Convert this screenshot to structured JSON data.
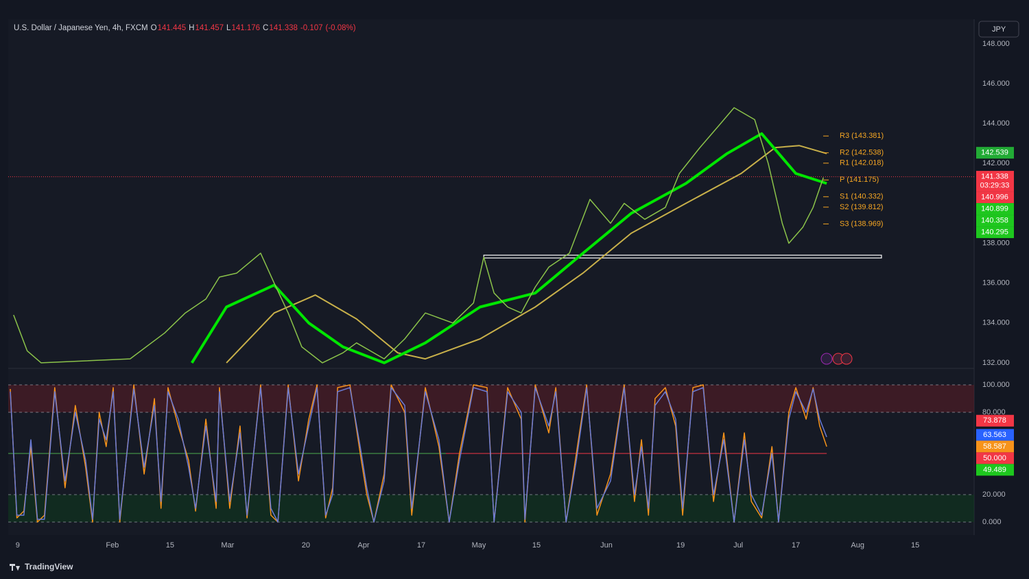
{
  "header": {
    "symbol": "U.S. Dollar / Japanese Yen, 4h, FXCM",
    "ohlc": [
      {
        "key": "O",
        "value": 141.445
      },
      {
        "key": "H",
        "value": 141.457
      },
      {
        "key": "L",
        "value": 141.176
      },
      {
        "key": "C",
        "value": 141.338
      }
    ],
    "change": -0.107,
    "change_pct": "(-0.08%)"
  },
  "currency_button": "JPY",
  "brand": "TradingView",
  "chart_data": [
    {
      "type": "line",
      "xlim": [
        6.7,
        241.3
      ],
      "ylim": [
        131.72,
        149.24
      ],
      "yticks": [
        {
          "value": 132,
          "label": "132.000"
        },
        {
          "value": 134,
          "label": "134.000"
        },
        {
          "value": 136,
          "label": "136.000"
        },
        {
          "value": 138,
          "label": "138.000"
        },
        {
          "value": 140,
          "label": "140.000"
        },
        {
          "value": 142,
          "label": "142.000"
        },
        {
          "value": 144,
          "label": "144.000"
        },
        {
          "value": 146,
          "label": "146.000"
        },
        {
          "value": 148,
          "label": "148.000"
        }
      ],
      "grid": false,
      "series": [
        {
          "color": "#c8b04a",
          "width": 2,
          "x": [
            59.7,
            71.3,
            81.3,
            91.3,
            101.3,
            108,
            121.3,
            134.7,
            146.3,
            158,
            171.3,
            184.7,
            193,
            198.8,
            205.5
          ],
          "values": [
            132.0,
            134.5,
            135.4,
            134.2,
            132.5,
            132.2,
            133.2,
            134.8,
            136.5,
            138.5,
            140.0,
            141.5,
            142.8,
            142.9,
            142.5
          ]
        },
        {
          "color": "#00e600",
          "width": 4,
          "x": [
            51.3,
            59.7,
            71.3,
            79.7,
            88,
            98,
            108,
            121.3,
            134.7,
            146.3,
            158,
            171.3,
            181.3,
            189.7,
            198,
            205.5
          ],
          "values": [
            132.0,
            134.8,
            135.9,
            134.0,
            132.8,
            132.0,
            133.0,
            134.8,
            135.5,
            137.5,
            139.5,
            141.0,
            142.5,
            143.5,
            141.5,
            141.0
          ]
        },
        {
          "color": "#8bc34a",
          "width": 1.5,
          "x": [
            8.0,
            11.3,
            14.7,
            36.3,
            44.7,
            49.7,
            54.7,
            58,
            62.2,
            68,
            71.3,
            74.7,
            78,
            83,
            88,
            91.3,
            98,
            103,
            108,
            114.7,
            119.7,
            122.2,
            124.7,
            128,
            131.3,
            134.7,
            138,
            143,
            148,
            153,
            156.3,
            161.3,
            166.3,
            169.7,
            174.7,
            179.7,
            183,
            188,
            191.3,
            194.7,
            196.3,
            199.7,
            202.2,
            204.7
          ],
          "values": [
            134.4,
            132.6,
            132.0,
            132.2,
            133.5,
            134.5,
            135.2,
            136.3,
            136.5,
            137.5,
            136.0,
            134.5,
            132.8,
            132.0,
            132.5,
            133.0,
            132.2,
            133.2,
            134.5,
            134.0,
            135.0,
            137.3,
            135.5,
            134.8,
            134.5,
            135.8,
            136.8,
            137.5,
            140.2,
            139.0,
            140.0,
            139.2,
            139.8,
            141.5,
            142.8,
            144.0,
            144.8,
            144.2,
            142.0,
            139.0,
            138.0,
            138.8,
            139.8,
            141.3
          ]
        }
      ],
      "last_price_line": {
        "value": 141.338,
        "color": "#f23645"
      },
      "zone": {
        "x": [
          122.2,
          218.8
        ],
        "y": [
          137.26,
          137.4
        ],
        "color": "#ffffff"
      },
      "pivots": [
        {
          "value": 143.381,
          "label": "R3 (143.381)"
        },
        {
          "value": 142.538,
          "label": "R2 (142.538)"
        },
        {
          "value": 142.018,
          "label": "R1 (142.018)"
        },
        {
          "value": 141.175,
          "label": "P (141.175)"
        },
        {
          "value": 140.332,
          "label": "S1 (140.332)"
        },
        {
          "value": 139.812,
          "label": "S2 (139.812)"
        },
        {
          "value": 138.969,
          "label": "S3 (138.969)"
        }
      ],
      "pivot_color": "#f5a623",
      "price_labels": [
        {
          "value": 142.539,
          "color": "#22ab35"
        },
        {
          "value": 141.338,
          "color": "#f23645",
          "countdown": "03:29:33"
        },
        {
          "value": 140.996,
          "color": "#f23645"
        },
        {
          "value": 140.899,
          "color": "#1ec71e"
        },
        {
          "value": 140.358,
          "color": "#1ec71e"
        },
        {
          "value": 140.295,
          "color": "#1ec71e"
        }
      ]
    },
    {
      "type": "line",
      "xlim": [
        6.7,
        241.3
      ],
      "ylim": [
        -9.5,
        112
      ],
      "yticks": [
        {
          "value": 0,
          "label": "0.000"
        },
        {
          "value": 20,
          "label": "20.000"
        },
        {
          "value": 80,
          "label": "80.000"
        },
        {
          "value": 100,
          "label": "100.000"
        }
      ],
      "grid": true,
      "xticks": [
        9,
        {
          "value": 32,
          "label": "Feb"
        },
        {
          "value": 46,
          "label": "15"
        },
        {
          "value": 60,
          "label": "Mar"
        },
        {
          "value": 79,
          "label": "20"
        },
        {
          "value": 93,
          "label": "Apr"
        },
        {
          "value": 107,
          "label": "17"
        },
        {
          "value": 121,
          "label": "May"
        },
        {
          "value": 135,
          "label": "15"
        },
        {
          "value": 152,
          "label": "Jun"
        },
        {
          "value": 170,
          "label": "19"
        },
        {
          "value": 184,
          "label": "Jul"
        },
        {
          "value": 198,
          "label": "17"
        },
        {
          "value": 213,
          "label": "Aug"
        },
        {
          "value": 227,
          "label": "15"
        }
      ],
      "bands": [
        {
          "range": [
            80,
            100
          ],
          "color": "#5c1d27"
        },
        {
          "range": [
            0,
            20
          ],
          "color": "#0f3a1e"
        }
      ],
      "hlines": [
        {
          "value": 50,
          "color": "#4caf50",
          "x": [
            6.7,
            113
          ]
        },
        {
          "value": 50,
          "color": "#f23645",
          "x": [
            113,
            205.5
          ]
        }
      ],
      "x": [
        7.2,
        8.8,
        10.5,
        12.2,
        13.8,
        15.5,
        18,
        20.5,
        23,
        25.5,
        27.2,
        28.8,
        30.5,
        32.2,
        33.8,
        37.2,
        39.7,
        42.2,
        43.8,
        45.5,
        48,
        50.5,
        52.2,
        54.7,
        57.2,
        58,
        60.5,
        63,
        64.7,
        68,
        70.5,
        72.2,
        74.7,
        77.2,
        79.7,
        81.7,
        83.8,
        85.5,
        86.7,
        89.7,
        92.2,
        93.8,
        95.5,
        98,
        99.7,
        103,
        104.7,
        108,
        111.3,
        113.8,
        116.3,
        119.7,
        123,
        124.7,
        128,
        131.3,
        132.2,
        134.7,
        138,
        139.7,
        142.2,
        144.7,
        147.2,
        149.7,
        153,
        156.3,
        158.8,
        160.5,
        162.2,
        163.8,
        166.3,
        168.8,
        170.5,
        173,
        175.5,
        178,
        180.5,
        183,
        185.5,
        187.2,
        189.7,
        192.2,
        193.8,
        196.3,
        198,
        200.5,
        202.2,
        203.8,
        205.5
      ],
      "series": [
        {
          "color": "#f7931a",
          "values": [
            97,
            3,
            8,
            55,
            0,
            5,
            98,
            25,
            85,
            40,
            0,
            80,
            55,
            98,
            0,
            100,
            35,
            90,
            10,
            98,
            70,
            45,
            8,
            75,
            10,
            98,
            10,
            70,
            3,
            100,
            5,
            0,
            100,
            30,
            75,
            100,
            3,
            25,
            98,
            100,
            50,
            20,
            0,
            35,
            100,
            80,
            5,
            98,
            55,
            0,
            50,
            100,
            98,
            0,
            98,
            75,
            0,
            100,
            65,
            98,
            0,
            50,
            100,
            5,
            35,
            100,
            15,
            60,
            5,
            90,
            98,
            70,
            5,
            98,
            100,
            15,
            65,
            0,
            65,
            15,
            3,
            55,
            0,
            80,
            98,
            75,
            98,
            70,
            55
          ]
        },
        {
          "color": "#6a7bd6",
          "values": [
            95,
            5,
            5,
            60,
            2,
            2,
            95,
            30,
            80,
            45,
            2,
            75,
            60,
            95,
            2,
            97,
            40,
            85,
            15,
            95,
            75,
            40,
            10,
            70,
            15,
            95,
            15,
            65,
            5,
            98,
            10,
            0,
            98,
            35,
            70,
            98,
            5,
            20,
            95,
            98,
            55,
            25,
            0,
            30,
            98,
            85,
            10,
            95,
            60,
            0,
            45,
            98,
            95,
            0,
            95,
            80,
            2,
            98,
            70,
            95,
            0,
            45,
            98,
            10,
            30,
            98,
            20,
            55,
            10,
            85,
            95,
            75,
            10,
            95,
            98,
            20,
            60,
            0,
            60,
            20,
            5,
            50,
            0,
            75,
            95,
            80,
            97,
            75,
            62
          ]
        }
      ],
      "price_labels": [
        {
          "value": 73.878,
          "color": "#f23645"
        },
        {
          "value": 63.563,
          "color": "#2962ff"
        },
        {
          "value": 58.587,
          "color": "#f7931a"
        },
        {
          "value": {
            "value": 50,
            "label": "50.000"
          },
          "color": "#f23645"
        },
        {
          "value": 49.489,
          "color": "#1ec71e"
        }
      ]
    }
  ]
}
